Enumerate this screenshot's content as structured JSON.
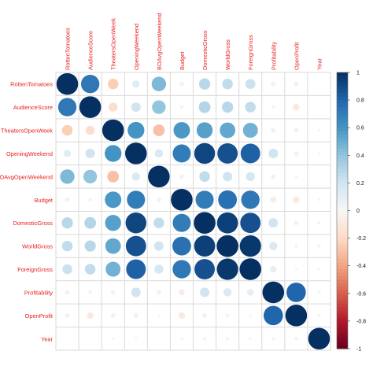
{
  "chart_data": {
    "type": "heatmap",
    "variables": [
      "RottenTomatoes",
      "AudienceScore",
      "TheatersOpenWeek",
      "OpeningWeekend",
      "BOAvgOpenWeekend",
      "Budget",
      "DomesticGross",
      "WorldGross",
      "ForeignGross",
      "Profitability",
      "OpenProfit",
      "Year"
    ],
    "matrix": [
      [
        1.0,
        0.72,
        -0.25,
        0.12,
        0.45,
        0.05,
        0.28,
        0.25,
        0.22,
        0.05,
        -0.05,
        0.0
      ],
      [
        0.72,
        1.0,
        -0.18,
        0.2,
        0.4,
        0.03,
        0.3,
        0.28,
        0.25,
        0.03,
        -0.1,
        0.0
      ],
      [
        -0.25,
        -0.18,
        1.0,
        0.6,
        -0.3,
        0.58,
        0.55,
        0.52,
        0.48,
        0.05,
        0.05,
        0.02
      ],
      [
        0.12,
        0.2,
        0.6,
        1.0,
        0.15,
        0.7,
        0.92,
        0.88,
        0.82,
        0.2,
        0.05,
        0.02
      ],
      [
        0.45,
        0.4,
        -0.3,
        0.15,
        1.0,
        0.05,
        0.25,
        0.2,
        0.18,
        0.05,
        0.02,
        0.0
      ],
      [
        0.05,
        0.03,
        0.58,
        0.7,
        0.05,
        1.0,
        0.7,
        0.75,
        0.72,
        -0.08,
        -0.1,
        0.02
      ],
      [
        0.28,
        0.3,
        0.55,
        0.92,
        0.25,
        0.7,
        1.0,
        0.94,
        0.88,
        0.2,
        0.05,
        0.03
      ],
      [
        0.25,
        0.28,
        0.52,
        0.88,
        0.2,
        0.75,
        0.94,
        1.0,
        0.97,
        0.15,
        0.03,
        0.03
      ],
      [
        0.22,
        0.25,
        0.48,
        0.82,
        0.18,
        0.72,
        0.88,
        0.97,
        1.0,
        0.1,
        0.02,
        0.02
      ],
      [
        0.05,
        0.03,
        0.05,
        0.2,
        0.05,
        -0.08,
        0.2,
        0.15,
        0.1,
        1.0,
        0.8,
        0.03
      ],
      [
        -0.05,
        -0.1,
        0.05,
        0.05,
        0.02,
        -0.1,
        0.05,
        0.03,
        0.02,
        0.8,
        1.0,
        0.03
      ],
      [
        0.0,
        0.0,
        0.02,
        0.02,
        0.0,
        0.02,
        0.03,
        0.03,
        0.02,
        0.03,
        0.03,
        1.0
      ]
    ],
    "colorbar": {
      "ticks": [
        1,
        0.8,
        0.6,
        0.4,
        0.2,
        0,
        -0.2,
        -0.4,
        -0.6,
        -0.8,
        -1
      ],
      "range": [
        -1,
        1
      ],
      "low_color": "#67001F",
      "mid_color": "#F7F7F7",
      "high_color": "#053061"
    },
    "label_color": "#E8201F",
    "grid": true,
    "legend_position": "right"
  }
}
